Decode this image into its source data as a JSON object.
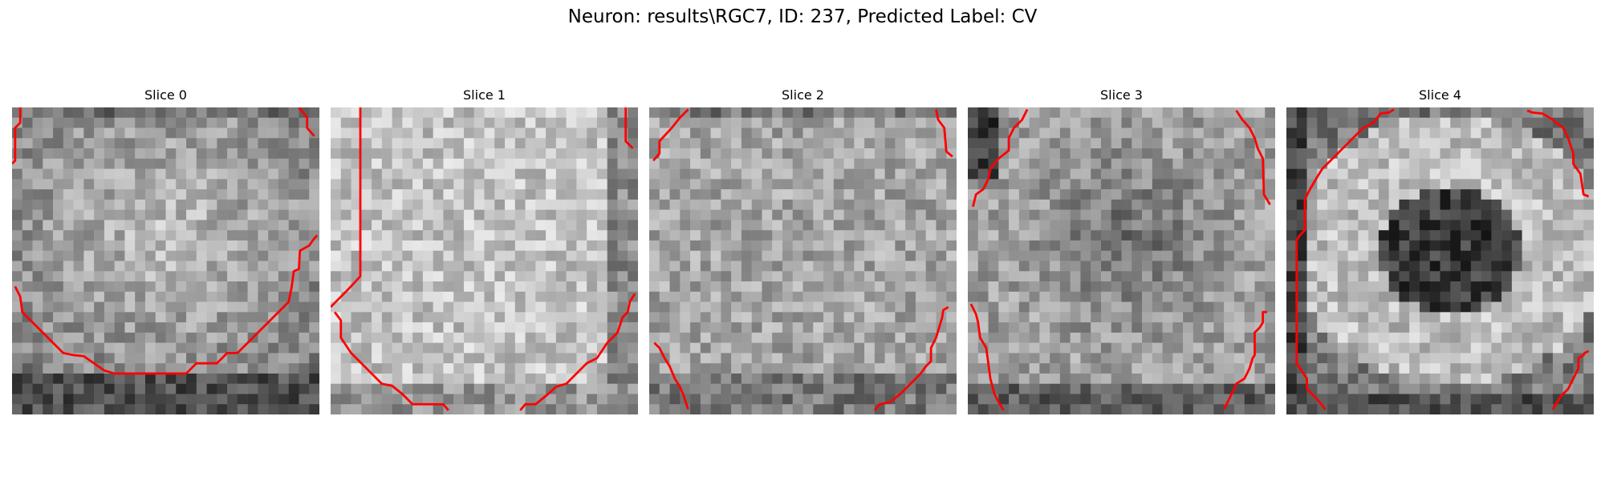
{
  "figure": {
    "title": "Neuron: results\\RGC7, ID: 237, Predicted Label: CV"
  },
  "panels": [
    {
      "title": "Slice 0"
    },
    {
      "title": "Slice 1"
    },
    {
      "title": "Slice 2"
    },
    {
      "title": "Slice 3"
    },
    {
      "title": "Slice 4"
    }
  ],
  "style": {
    "contour_color": "#ff0000",
    "colormap": "gray"
  }
}
